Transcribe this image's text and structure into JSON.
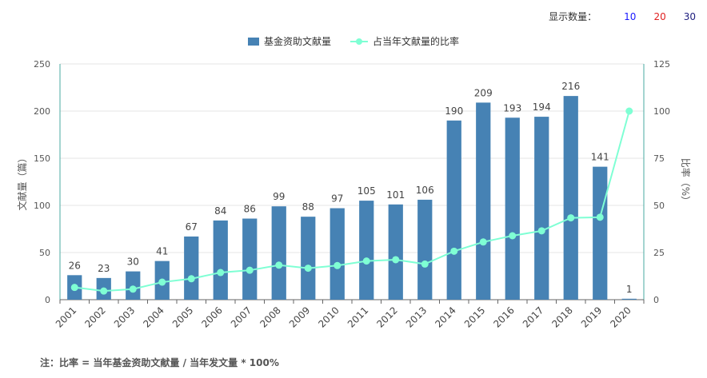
{
  "controls": {
    "label": "显示数量：",
    "options": [
      {
        "label": "10",
        "color": "#1a1aff"
      },
      {
        "label": "20",
        "color": "#e02020"
      },
      {
        "label": "30",
        "color": "#202080"
      }
    ]
  },
  "legend": {
    "bar_label": "基金资助文献量",
    "line_label": "占当年文献量的比率"
  },
  "footnote": "注：比率 = 当年基金资助文献量 / 当年发文量 * 100%",
  "colors": {
    "bar": "#4682b4",
    "line": "#7fffd4",
    "axis": "#4aa8a0",
    "grid": "#e6e6e6"
  },
  "chart_data": {
    "type": "bar",
    "categories": [
      "2001",
      "2002",
      "2003",
      "2004",
      "2005",
      "2006",
      "2007",
      "2008",
      "2009",
      "2010",
      "2011",
      "2012",
      "2013",
      "2014",
      "2015",
      "2016",
      "2017",
      "2018",
      "2019",
      "2020"
    ],
    "series": [
      {
        "name": "基金资助文献量",
        "type": "bar",
        "axis": "left",
        "values": [
          26,
          23,
          30,
          41,
          67,
          84,
          86,
          99,
          88,
          97,
          105,
          101,
          106,
          190,
          209,
          193,
          194,
          216,
          141,
          1
        ]
      },
      {
        "name": "占当年文献量的比率",
        "type": "line",
        "axis": "right",
        "values": [
          6.5,
          4.6,
          5.6,
          9.3,
          11.1,
          14.4,
          15.6,
          18.3,
          16.7,
          18.1,
          20.5,
          21.2,
          18.9,
          25.7,
          30.6,
          33.9,
          36.5,
          43.4,
          43.7,
          100
        ]
      }
    ],
    "y_left": {
      "label": "文献量（篇）",
      "min": 0,
      "max": 250,
      "ticks": [
        0,
        50,
        100,
        150,
        200,
        250
      ]
    },
    "y_right": {
      "label": "比率（%）",
      "min": 0,
      "max": 125,
      "ticks": [
        0,
        25,
        50,
        75,
        100,
        125
      ]
    },
    "grid": true,
    "legend_position": "top-center"
  }
}
